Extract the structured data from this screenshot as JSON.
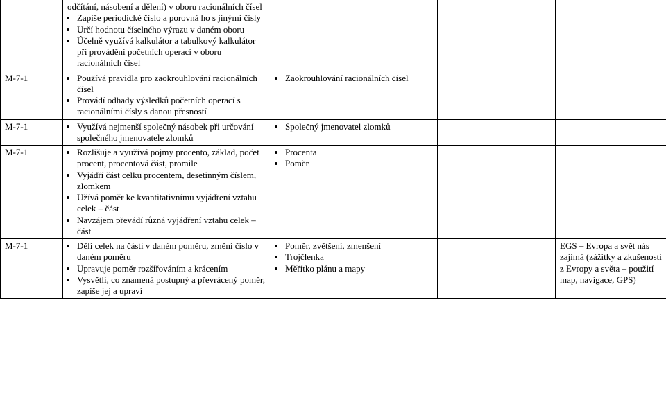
{
  "rows": [
    {
      "code": "",
      "col2_pre": "odčítání, násobení a dělení) v oboru racionálních čísel",
      "col2_bullets": [
        "Zapíše periodické číslo a porovná ho s jinými čísly",
        "Určí hodnotu číselného výrazu v daném oboru",
        "Účelně využívá kalkulátor a tabulkový kalkulátor při provádění početních operací v oboru racionálních čísel"
      ],
      "col3_bullets": [],
      "col4_bullets": [],
      "col5": ""
    },
    {
      "code": "M-7-1",
      "col2_bullets": [
        "Používá pravidla pro zaokrouhlování racionálních čísel",
        "Provádí odhady výsledků početních operací s racionálními čísly s danou přesností"
      ],
      "col3_bullets": [
        "Zaokrouhlování racionálních čísel"
      ],
      "col4_bullets": [],
      "col5": ""
    },
    {
      "code": "M-7-1",
      "col2_bullets": [
        "Využívá nejmenší společný násobek při určování společného jmenovatele zlomků"
      ],
      "col3_bullets": [
        "Společný jmenovatel zlomků"
      ],
      "col4_bullets": [],
      "col5": ""
    },
    {
      "code": "M-7-1",
      "col2_bullets": [
        "Rozlišuje a využívá pojmy procento, základ, počet procent, procentová část, promile",
        "Vyjádří část celku procentem, desetinným číslem, zlomkem",
        "Užívá poměr ke kvantitativnímu vyjádření vztahu celek – část",
        "Navzájem převádí různá vyjádření vztahu celek – část"
      ],
      "col3_bullets": [
        "Procenta",
        "Poměr"
      ],
      "col4_bullets": [],
      "col5": ""
    },
    {
      "code": "M-7-1",
      "col2_bullets": [
        "Dělí celek na části v daném poměru, změní číslo v daném poměru",
        "Upravuje poměr rozšiřováním a krácením",
        "Vysvětlí, co znamená postupný a převrácený poměr, zapíše jej a upraví"
      ],
      "col3_bullets": [
        "Poměr, zvětšení, zmenšení",
        "Trojčlenka",
        "Měřítko plánu a mapy"
      ],
      "col4_bullets": [],
      "col5": "EGS – Evropa a svět nás zajímá (zážitky a zkušenosti z Evropy a světa – použití map, navigace, GPS)"
    }
  ]
}
